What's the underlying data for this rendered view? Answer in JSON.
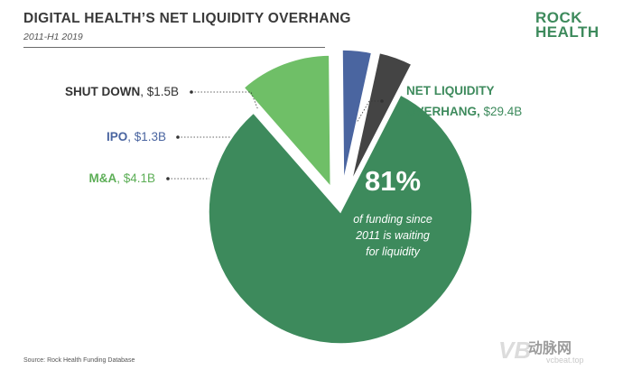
{
  "header": {
    "title": "DIGITAL HEALTH’S NET LIQUIDITY OVERHANG",
    "subtitle": "2011-H1 2019"
  },
  "logo": {
    "line1": "ROCK",
    "line2": "HEALTH"
  },
  "footer": {
    "source": "Source: Rock Health Funding Database"
  },
  "watermark": {
    "text": "动脉网",
    "sub": "vcbeat.top",
    "mark": "VB"
  },
  "colors": {
    "net_liquidity": "#3d8a5c",
    "ma": "#6fbf67",
    "ipo": "#4a65a0",
    "shut_down": "#444444",
    "logo": "#3d8a5c"
  },
  "chart_data": {
    "type": "pie",
    "unit": "$B",
    "slices": [
      {
        "name": "NET LIQUIDITY OVERHANG",
        "value": 29.4,
        "value_label": "$29.4B",
        "color": "#3d8a5c",
        "label_color": "#3d8a5c"
      },
      {
        "name": "M&A",
        "value": 4.1,
        "value_label": "$4.1B",
        "color": "#6fbf67",
        "label_color": "#5cae56"
      },
      {
        "name": "IPO",
        "value": 1.3,
        "value_label": "$1.3B",
        "color": "#4a65a0",
        "label_color": "#4a65a0"
      },
      {
        "name": "SHUT DOWN",
        "value": 1.5,
        "value_label": "$1.5B",
        "color": "#444444",
        "label_color": "#333333"
      }
    ],
    "callout": {
      "percent": "81%",
      "lines": [
        "of funding since",
        "2011 is waiting",
        "for liquidity"
      ]
    }
  }
}
